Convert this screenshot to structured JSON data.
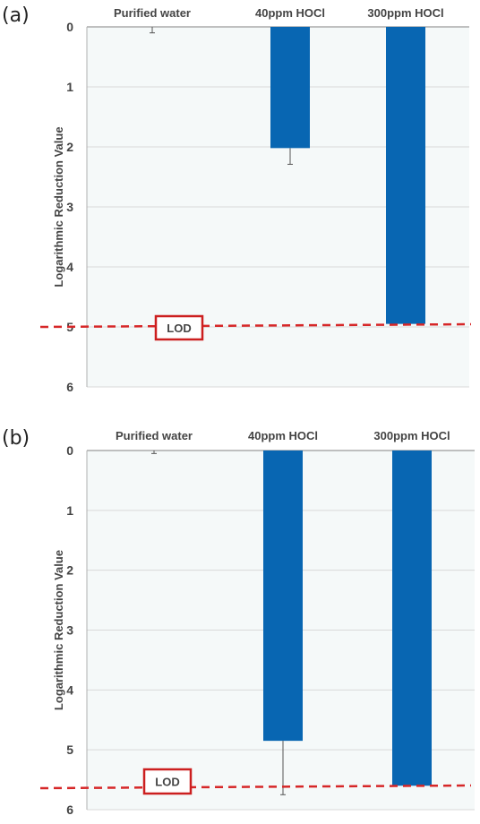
{
  "chart_data": [
    {
      "panel_label": "(a)",
      "type": "bar",
      "orientation": "vertical-down",
      "categories": [
        "Purified water",
        "40ppm HOCl",
        "300ppm HOCl"
      ],
      "values": [
        0,
        2.02,
        4.95
      ],
      "error": [
        0.1,
        0.27,
        0
      ],
      "ylabel": "Logarithmic Reduction Value",
      "ylim": [
        0,
        6
      ],
      "yticks": [
        "0",
        "1",
        "2",
        "3",
        "4",
        "5",
        "6"
      ],
      "grid": true,
      "lod": {
        "label": "LOD",
        "value": 5.0
      },
      "colors": {
        "bar": "#0866b2",
        "lod": "#d62728",
        "plot_bg": "#f5f9f9",
        "grid": "#d9d9d9"
      }
    },
    {
      "panel_label": "(b)",
      "type": "bar",
      "orientation": "vertical-down",
      "categories": [
        "Purified water",
        "40ppm HOCl",
        "300ppm HOCl"
      ],
      "values": [
        0,
        4.85,
        5.6
      ],
      "error": [
        0.05,
        0.9,
        0
      ],
      "ylabel": "Logarithmic Reduction Value",
      "ylim": [
        0,
        6
      ],
      "yticks": [
        "0",
        "1",
        "2",
        "3",
        "4",
        "5",
        "6"
      ],
      "grid": true,
      "lod": {
        "label": "LOD",
        "value": 5.6
      },
      "colors": {
        "bar": "#0866b2",
        "lod": "#d62728",
        "plot_bg": "#f5f9f9",
        "grid": "#d9d9d9"
      }
    }
  ]
}
